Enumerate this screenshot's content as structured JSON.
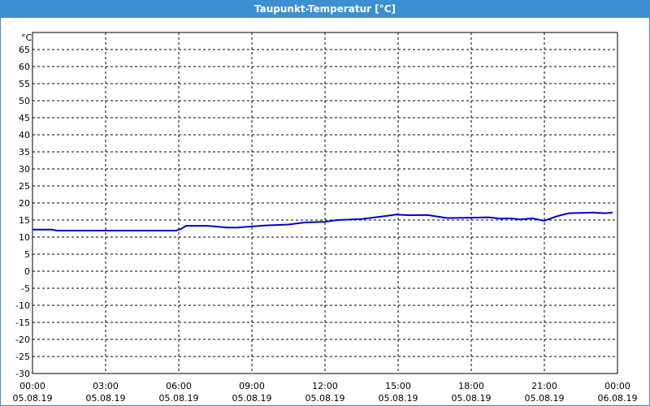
{
  "window": {
    "title": "Taupunkt-Temperatur [°C]",
    "title_bg": "#3c8fd0"
  },
  "chart_data": {
    "type": "line",
    "title": "Taupunkt-Temperatur [°C]",
    "ylabel": "°C",
    "ylim": [
      -30,
      70
    ],
    "xlim": [
      "2019-08-05 00:00",
      "2019-08-06 00:00"
    ],
    "y_ticks": [
      65,
      60,
      55,
      50,
      45,
      40,
      35,
      30,
      25,
      20,
      15,
      10,
      5,
      0,
      -5,
      -10,
      -15,
      -20,
      -25,
      -30
    ],
    "x_ticks": [
      {
        "time": "00:00",
        "date": "05.08.19"
      },
      {
        "time": "03:00",
        "date": "05.08.19"
      },
      {
        "time": "06:00",
        "date": "05.08.19"
      },
      {
        "time": "09:00",
        "date": "05.08.19"
      },
      {
        "time": "12:00",
        "date": "05.08.19"
      },
      {
        "time": "15:00",
        "date": "05.08.19"
      },
      {
        "time": "18:00",
        "date": "05.08.19"
      },
      {
        "time": "21:00",
        "date": "05.08.19"
      },
      {
        "time": "00:00",
        "date": "06.08.19"
      }
    ],
    "grid": true,
    "line_color": "#0000cc",
    "series": [
      {
        "x_hours": [
          0,
          0.8,
          1.0,
          3,
          5.9,
          6.1,
          6.3,
          7.2,
          8.0,
          8.4,
          9.5,
          10.5,
          11.2,
          12.0,
          12.5,
          13.5,
          14.5,
          14.9,
          15.5,
          16.2,
          17.0,
          18.0,
          18.7,
          19.2,
          19.6,
          20.0,
          20.5,
          21.0,
          21.5,
          22.0,
          23.0,
          23.5,
          23.8
        ],
        "y": [
          12.2,
          12.2,
          11.9,
          11.9,
          11.9,
          12.4,
          13.3,
          13.3,
          12.8,
          12.8,
          13.4,
          13.7,
          14.3,
          14.5,
          15.0,
          15.3,
          16.2,
          16.6,
          16.4,
          16.5,
          15.6,
          15.7,
          15.8,
          15.4,
          15.5,
          15.2,
          15.5,
          14.8,
          16.1,
          17.0,
          17.2,
          17.0,
          17.2
        ]
      }
    ]
  }
}
